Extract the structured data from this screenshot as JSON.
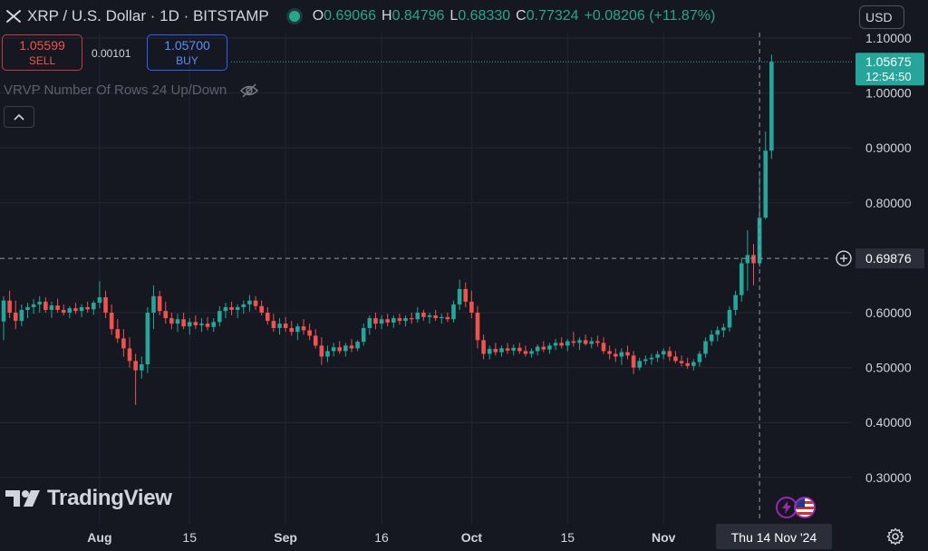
{
  "header": {
    "symbol_title": "XRP / U.S. Dollar · 1D · BITSTAMP",
    "ohlc": [
      {
        "key": "O",
        "value": "0.69066"
      },
      {
        "key": "H",
        "value": "0.84796"
      },
      {
        "key": "L",
        "value": "0.68330"
      },
      {
        "key": "C",
        "value": "0.77324"
      }
    ],
    "change": "+0.08206 (+11.87%)",
    "currency": "USD"
  },
  "trade": {
    "sell_price": "1.05599",
    "sell_label": "SELL",
    "spread": "0.00101",
    "buy_price": "1.05700",
    "buy_label": "BUY"
  },
  "indicator_label": "VRVP Number Of Rows 24 Up/Down",
  "logo_text": "TradingView",
  "colors": {
    "up": "#26a69a",
    "down": "#ef5350",
    "background": "#161821",
    "grid": "#232632",
    "accent": "#2aa58a"
  },
  "chart_data": {
    "type": "candlestick",
    "ylim": [
      0.24,
      1.11
    ],
    "y_ticks": [
      "1.10000",
      "1.00000",
      "0.90000",
      "0.80000",
      "0.60000",
      "0.50000",
      "0.40000",
      "0.30000"
    ],
    "x_ticks": [
      "Aug",
      "15",
      "Sep",
      "16",
      "Oct",
      "15",
      "Nov"
    ],
    "current_price": {
      "value": "1.05675",
      "countdown": "12:54:50",
      "y": 1.05675
    },
    "crosshair": {
      "price_label": "0.69876",
      "y": 0.69876,
      "date_label": "Thu 14 Nov '24"
    },
    "candles": [
      [
        0.584,
        0.63,
        0.55,
        0.622
      ],
      [
        0.622,
        0.64,
        0.59,
        0.6
      ],
      [
        0.6,
        0.622,
        0.57,
        0.585
      ],
      [
        0.585,
        0.615,
        0.575,
        0.605
      ],
      [
        0.605,
        0.618,
        0.59,
        0.61
      ],
      [
        0.61,
        0.625,
        0.598,
        0.615
      ],
      [
        0.615,
        0.63,
        0.6,
        0.62
      ],
      [
        0.62,
        0.628,
        0.6,
        0.605
      ],
      [
        0.605,
        0.62,
        0.59,
        0.613
      ],
      [
        0.613,
        0.625,
        0.6,
        0.605
      ],
      [
        0.605,
        0.615,
        0.595,
        0.6
      ],
      [
        0.6,
        0.612,
        0.59,
        0.608
      ],
      [
        0.608,
        0.618,
        0.598,
        0.603
      ],
      [
        0.603,
        0.615,
        0.592,
        0.61
      ],
      [
        0.61,
        0.62,
        0.6,
        0.606
      ],
      [
        0.606,
        0.622,
        0.596,
        0.618
      ],
      [
        0.618,
        0.657,
        0.608,
        0.628
      ],
      [
        0.628,
        0.64,
        0.59,
        0.6
      ],
      [
        0.6,
        0.615,
        0.56,
        0.57
      ],
      [
        0.57,
        0.588,
        0.545,
        0.553
      ],
      [
        0.553,
        0.57,
        0.52,
        0.535
      ],
      [
        0.535,
        0.555,
        0.5,
        0.512
      ],
      [
        0.512,
        0.525,
        0.432,
        0.495
      ],
      [
        0.495,
        0.52,
        0.48,
        0.506
      ],
      [
        0.506,
        0.61,
        0.49,
        0.6
      ],
      [
        0.6,
        0.65,
        0.57,
        0.63
      ],
      [
        0.63,
        0.64,
        0.595,
        0.603
      ],
      [
        0.603,
        0.62,
        0.58,
        0.59
      ],
      [
        0.59,
        0.6,
        0.57,
        0.58
      ],
      [
        0.58,
        0.598,
        0.565,
        0.588
      ],
      [
        0.588,
        0.6,
        0.57,
        0.575
      ],
      [
        0.575,
        0.59,
        0.56,
        0.583
      ],
      [
        0.583,
        0.595,
        0.57,
        0.577
      ],
      [
        0.577,
        0.59,
        0.565,
        0.58
      ],
      [
        0.58,
        0.592,
        0.568,
        0.574
      ],
      [
        0.574,
        0.59,
        0.565,
        0.583
      ],
      [
        0.583,
        0.612,
        0.575,
        0.603
      ],
      [
        0.603,
        0.618,
        0.59,
        0.61
      ],
      [
        0.61,
        0.62,
        0.595,
        0.605
      ],
      [
        0.605,
        0.615,
        0.59,
        0.61
      ],
      [
        0.61,
        0.622,
        0.598,
        0.615
      ],
      [
        0.615,
        0.632,
        0.602,
        0.622
      ],
      [
        0.622,
        0.63,
        0.605,
        0.612
      ],
      [
        0.612,
        0.622,
        0.595,
        0.6
      ],
      [
        0.6,
        0.61,
        0.578,
        0.585
      ],
      [
        0.585,
        0.598,
        0.565,
        0.572
      ],
      [
        0.572,
        0.59,
        0.56,
        0.58
      ],
      [
        0.58,
        0.592,
        0.565,
        0.572
      ],
      [
        0.572,
        0.585,
        0.558,
        0.565
      ],
      [
        0.565,
        0.58,
        0.55,
        0.575
      ],
      [
        0.575,
        0.588,
        0.56,
        0.568
      ],
      [
        0.568,
        0.58,
        0.55,
        0.558
      ],
      [
        0.558,
        0.57,
        0.535,
        0.54
      ],
      [
        0.54,
        0.555,
        0.505,
        0.52
      ],
      [
        0.52,
        0.54,
        0.51,
        0.53
      ],
      [
        0.53,
        0.545,
        0.52,
        0.537
      ],
      [
        0.537,
        0.548,
        0.525,
        0.53
      ],
      [
        0.53,
        0.545,
        0.52,
        0.54
      ],
      [
        0.54,
        0.552,
        0.528,
        0.535
      ],
      [
        0.535,
        0.55,
        0.53,
        0.547
      ],
      [
        0.547,
        0.58,
        0.54,
        0.572
      ],
      [
        0.572,
        0.595,
        0.56,
        0.59
      ],
      [
        0.59,
        0.6,
        0.57,
        0.58
      ],
      [
        0.58,
        0.595,
        0.57,
        0.588
      ],
      [
        0.588,
        0.598,
        0.575,
        0.582
      ],
      [
        0.582,
        0.595,
        0.572,
        0.59
      ],
      [
        0.59,
        0.598,
        0.578,
        0.585
      ],
      [
        0.585,
        0.595,
        0.575,
        0.59
      ],
      [
        0.59,
        0.6,
        0.58,
        0.588
      ],
      [
        0.588,
        0.61,
        0.582,
        0.6
      ],
      [
        0.6,
        0.605,
        0.585,
        0.592
      ],
      [
        0.592,
        0.6,
        0.58,
        0.595
      ],
      [
        0.595,
        0.605,
        0.585,
        0.59
      ],
      [
        0.59,
        0.598,
        0.58,
        0.592
      ],
      [
        0.592,
        0.6,
        0.583,
        0.588
      ],
      [
        0.588,
        0.622,
        0.582,
        0.615
      ],
      [
        0.615,
        0.66,
        0.605,
        0.643
      ],
      [
        0.643,
        0.655,
        0.61,
        0.62
      ],
      [
        0.62,
        0.64,
        0.59,
        0.6
      ],
      [
        0.6,
        0.612,
        0.535,
        0.55
      ],
      [
        0.55,
        0.56,
        0.515,
        0.525
      ],
      [
        0.525,
        0.54,
        0.515,
        0.534
      ],
      [
        0.534,
        0.545,
        0.522,
        0.528
      ],
      [
        0.528,
        0.54,
        0.52,
        0.535
      ],
      [
        0.535,
        0.545,
        0.525,
        0.531
      ],
      [
        0.531,
        0.542,
        0.522,
        0.536
      ],
      [
        0.536,
        0.545,
        0.525,
        0.53
      ],
      [
        0.53,
        0.54,
        0.52,
        0.525
      ],
      [
        0.525,
        0.535,
        0.518,
        0.53
      ],
      [
        0.53,
        0.542,
        0.522,
        0.538
      ],
      [
        0.538,
        0.548,
        0.528,
        0.533
      ],
      [
        0.533,
        0.545,
        0.525,
        0.54
      ],
      [
        0.54,
        0.552,
        0.532,
        0.545
      ],
      [
        0.545,
        0.555,
        0.535,
        0.54
      ],
      [
        0.54,
        0.552,
        0.53,
        0.548
      ],
      [
        0.548,
        0.565,
        0.538,
        0.545
      ],
      [
        0.545,
        0.555,
        0.532,
        0.55
      ],
      [
        0.55,
        0.56,
        0.54,
        0.543
      ],
      [
        0.543,
        0.555,
        0.535,
        0.548
      ],
      [
        0.548,
        0.558,
        0.538,
        0.545
      ],
      [
        0.545,
        0.555,
        0.525,
        0.53
      ],
      [
        0.53,
        0.54,
        0.515,
        0.525
      ],
      [
        0.525,
        0.535,
        0.51,
        0.52
      ],
      [
        0.52,
        0.535,
        0.505,
        0.528
      ],
      [
        0.528,
        0.54,
        0.515,
        0.522
      ],
      [
        0.522,
        0.53,
        0.488,
        0.5
      ],
      [
        0.5,
        0.518,
        0.495,
        0.512
      ],
      [
        0.512,
        0.522,
        0.505,
        0.515
      ],
      [
        0.515,
        0.525,
        0.505,
        0.518
      ],
      [
        0.518,
        0.53,
        0.51,
        0.524
      ],
      [
        0.524,
        0.535,
        0.515,
        0.53
      ],
      [
        0.53,
        0.538,
        0.512,
        0.52
      ],
      [
        0.52,
        0.53,
        0.508,
        0.512
      ],
      [
        0.512,
        0.522,
        0.502,
        0.508
      ],
      [
        0.508,
        0.518,
        0.498,
        0.503
      ],
      [
        0.503,
        0.515,
        0.495,
        0.51
      ],
      [
        0.51,
        0.53,
        0.502,
        0.525
      ],
      [
        0.525,
        0.555,
        0.518,
        0.548
      ],
      [
        0.548,
        0.568,
        0.54,
        0.56
      ],
      [
        0.56,
        0.575,
        0.548,
        0.568
      ],
      [
        0.568,
        0.58,
        0.555,
        0.573
      ],
      [
        0.573,
        0.612,
        0.565,
        0.605
      ],
      [
        0.605,
        0.64,
        0.595,
        0.632
      ],
      [
        0.632,
        0.7,
        0.62,
        0.69
      ],
      [
        0.69,
        0.75,
        0.64,
        0.705
      ],
      [
        0.705,
        0.725,
        0.65,
        0.69
      ],
      [
        0.69,
        0.848,
        0.683,
        0.773
      ],
      [
        0.773,
        0.93,
        0.77,
        0.895
      ],
      [
        0.895,
        1.07,
        0.88,
        1.05675
      ]
    ]
  }
}
